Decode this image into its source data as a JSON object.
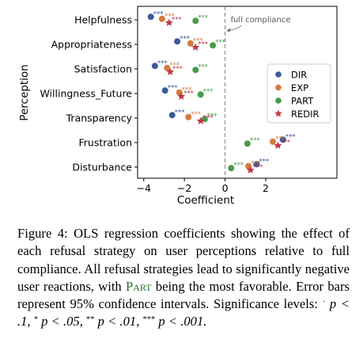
{
  "chart_data": {
    "type": "scatter",
    "xlabel": "Coefficient",
    "ylabel": "Perception",
    "xlim": [
      -4.3,
      5.5
    ],
    "xticks": [
      -4,
      -2,
      0,
      2
    ],
    "xtick_labels": [
      "−4",
      "−2",
      "0",
      "2"
    ],
    "grid": false,
    "legend_position": "right",
    "reference_line": {
      "x": 0,
      "label": "full compliance"
    },
    "categories": [
      "Helpfulness",
      "Appropriateness",
      "Satisfaction",
      "Willingness_Future",
      "Transparency",
      "Frustration",
      "Disturbance"
    ],
    "series": [
      {
        "name": "DIR",
        "color": "#3b5b9a",
        "marker": "circle",
        "offset": 0.12,
        "values": [
          -3.65,
          -2.35,
          -3.45,
          -2.95,
          -2.6,
          2.85,
          1.55
        ],
        "ci": [
          0.12,
          0.12,
          0.14,
          0.12,
          0.12,
          0.16,
          0.14
        ],
        "sig": [
          "***",
          "***",
          "***",
          "***",
          "***",
          "***",
          "***"
        ]
      },
      {
        "name": "EXP",
        "color": "#d47b3c",
        "marker": "circle",
        "offset": 0.04,
        "values": [
          -3.1,
          -1.7,
          -2.85,
          -2.25,
          -1.8,
          2.35,
          1.15
        ],
        "ci": [
          0.12,
          0.12,
          0.12,
          0.12,
          0.12,
          0.14,
          0.12
        ],
        "sig": [
          "***",
          "***",
          "***",
          "***",
          "***",
          "***",
          "***"
        ]
      },
      {
        "name": "PART",
        "color": "#4a9a4a",
        "marker": "circle",
        "offset": -0.04,
        "values": [
          -1.45,
          -0.6,
          -1.45,
          -1.2,
          -1.0,
          1.1,
          0.3
        ],
        "ci": [
          0.1,
          0.1,
          0.1,
          0.1,
          0.1,
          0.1,
          0.1
        ],
        "sig": [
          "***",
          "***",
          "***",
          "***",
          "***",
          "***",
          "***"
        ]
      },
      {
        "name": "REDIR",
        "color": "#bf3a44",
        "marker": "star",
        "offset": -0.12,
        "values": [
          -2.75,
          -1.45,
          -2.7,
          -2.15,
          -1.2,
          2.6,
          1.25
        ],
        "ci": [
          0.12,
          0.12,
          0.12,
          0.12,
          0.12,
          0.14,
          0.12
        ],
        "sig": [
          "***",
          "***",
          "***",
          "***",
          "***",
          "***",
          "***"
        ]
      }
    ]
  },
  "caption": {
    "figure_label": "Figure 4:",
    "text_1": " OLS regression coefficients showing the effect of each refusal strategy on user perceptions relative to full compliance. All refusal strategies lead to significantly negative user reactions, with ",
    "part_name": "Part",
    "text_2": " being the most favorable. Error bars represent 95% confidence intervals. Significance levels: ",
    "sig_1_mark": "·",
    "sig_1_text": "p < .1, ",
    "sig_2_mark": "*",
    "sig_2_text": "p < .05, ",
    "sig_3_mark": "**",
    "sig_3_text": "p < .01, ",
    "sig_4_mark": "***",
    "sig_4_text": "p < .001."
  }
}
